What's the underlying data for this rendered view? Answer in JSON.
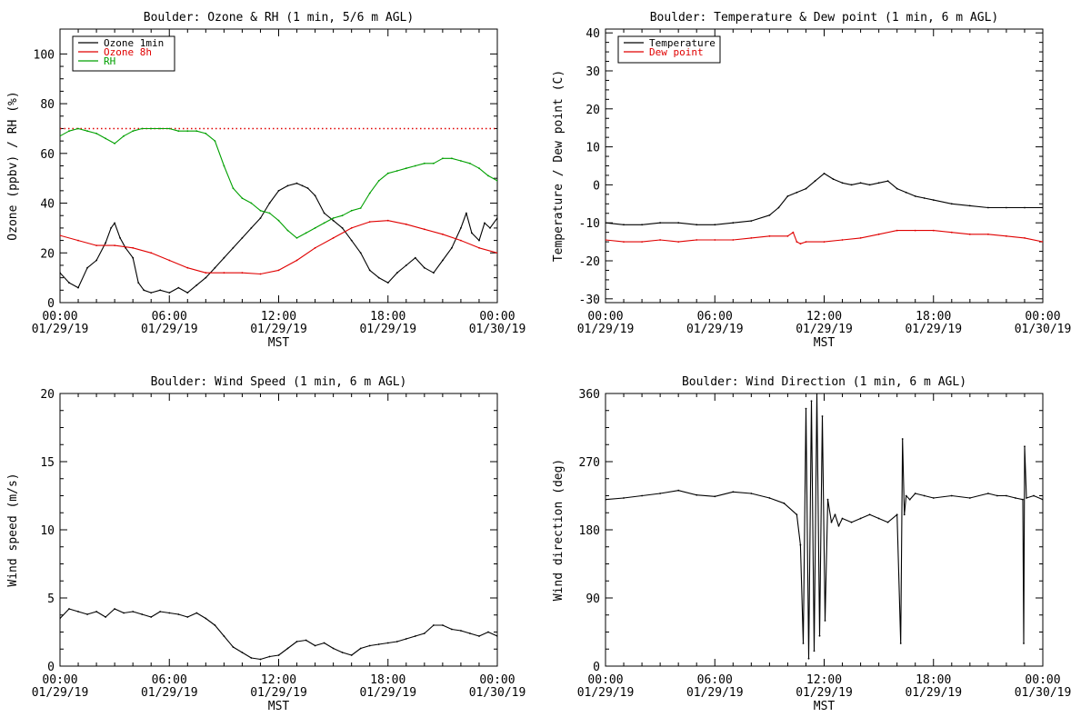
{
  "colors": {
    "black": "#000000",
    "red": "#e00000",
    "green": "#00a000"
  },
  "x_axis": {
    "ticks": [
      {
        "time": "00:00",
        "date": "01/29/19"
      },
      {
        "time": "06:00",
        "date": "01/29/19"
      },
      {
        "time": "12:00",
        "date": "01/29/19"
      },
      {
        "time": "18:00",
        "date": "01/29/19"
      },
      {
        "time": "00:00",
        "date": "01/30/19"
      }
    ],
    "label": "MST",
    "range_hours": [
      0,
      24
    ]
  },
  "chart_data": [
    {
      "type": "line",
      "title": "Boulder: Ozone & RH (1 min, 5/6 m AGL)",
      "ylabel": "Ozone (ppbv) / RH (%)",
      "ylim": [
        0,
        110
      ],
      "yticks": [
        "0",
        "20",
        "40",
        "60",
        "80",
        "100"
      ],
      "yticks_values": [
        0,
        20,
        40,
        60,
        80,
        100
      ],
      "legend_position": "top-left",
      "reference_line": {
        "y": 70,
        "style": "dotted",
        "color": "#e00000"
      },
      "series": [
        {
          "name": "Ozone 1min",
          "color": "#000000",
          "x": [
            0,
            0.5,
            1,
            1.5,
            2,
            2.5,
            2.8,
            3,
            3.3,
            3.6,
            4,
            4.3,
            4.6,
            5,
            5.5,
            6,
            6.5,
            7,
            7.5,
            8,
            8.5,
            9,
            9.5,
            10,
            10.5,
            11,
            11.5,
            12,
            12.5,
            13,
            13.3,
            13.6,
            14,
            14.5,
            15,
            15.5,
            16,
            16.5,
            17,
            17.5,
            18,
            18.5,
            19,
            19.5,
            20,
            20.5,
            21,
            21.5,
            22,
            22.3,
            22.6,
            23,
            23.3,
            23.6,
            24
          ],
          "y": [
            12,
            8,
            6,
            14,
            17,
            24,
            30,
            32,
            26,
            22,
            18,
            8,
            5,
            4,
            5,
            4,
            6,
            4,
            7,
            10,
            14,
            18,
            22,
            26,
            30,
            34,
            40,
            45,
            47,
            48,
            47,
            46,
            43,
            36,
            33,
            30,
            25,
            20,
            13,
            10,
            8,
            12,
            15,
            18,
            14,
            12,
            17,
            22,
            30,
            36,
            28,
            25,
            32,
            30,
            34
          ]
        },
        {
          "name": "Ozone 8h",
          "color": "#e00000",
          "x": [
            0,
            1,
            2,
            3,
            4,
            5,
            6,
            7,
            8,
            9,
            10,
            11,
            12,
            13,
            14,
            15,
            16,
            17,
            18,
            19,
            20,
            21,
            22,
            23,
            24
          ],
          "y": [
            27,
            25,
            23,
            23,
            22,
            20,
            17,
            14,
            12,
            12,
            12,
            11.5,
            13,
            17,
            22,
            26,
            30,
            32.5,
            33,
            31.5,
            29.5,
            27.5,
            25,
            22,
            20
          ]
        },
        {
          "name": "RH",
          "color": "#00a000",
          "x": [
            0,
            0.5,
            1,
            1.5,
            2,
            2.5,
            3,
            3.5,
            4,
            4.5,
            5,
            5.5,
            6,
            6.5,
            7,
            7.5,
            8,
            8.5,
            9,
            9.5,
            10,
            10.5,
            11,
            11.5,
            12,
            12.5,
            13,
            13.5,
            14,
            14.5,
            15,
            15.5,
            16,
            16.5,
            17,
            17.5,
            18,
            18.5,
            19,
            19.5,
            20,
            20.5,
            21,
            21.5,
            22,
            22.5,
            23,
            23.5,
            24
          ],
          "y": [
            67,
            69,
            70,
            69,
            68,
            66,
            64,
            67,
            69,
            70,
            70,
            70,
            70,
            69,
            69,
            69,
            68,
            65,
            55,
            46,
            42,
            40,
            37,
            36,
            33,
            29,
            26,
            28,
            30,
            32,
            34,
            35,
            37,
            38,
            44,
            49,
            52,
            53,
            54,
            55,
            56,
            56,
            58,
            58,
            57,
            56,
            54,
            51,
            49
          ]
        }
      ]
    },
    {
      "type": "line",
      "title": "Boulder: Temperature & Dew point (1 min, 6 m AGL)",
      "ylabel": "Temperature / Dew point (C)",
      "ylim": [
        -31,
        41
      ],
      "yticks": [
        "-30",
        "-20",
        "-10",
        "0",
        "10",
        "20",
        "30",
        "40"
      ],
      "yticks_values": [
        -30,
        -20,
        -10,
        0,
        10,
        20,
        30,
        40
      ],
      "legend_position": "top-left",
      "series": [
        {
          "name": "Temperature",
          "color": "#000000",
          "x": [
            0,
            1,
            2,
            3,
            4,
            5,
            6,
            7,
            8,
            9,
            9.5,
            10,
            10.5,
            11,
            11.5,
            12,
            12.5,
            13,
            13.5,
            14,
            14.5,
            15,
            15.5,
            16,
            16.5,
            17,
            17.5,
            18,
            19,
            20,
            21,
            22,
            23,
            24
          ],
          "y": [
            -10,
            -10.5,
            -10.5,
            -10,
            -10,
            -10.5,
            -10.5,
            -10,
            -9.5,
            -8,
            -6,
            -3,
            -2,
            -1,
            1,
            3,
            1.5,
            0.5,
            0,
            0.5,
            0,
            0.5,
            1,
            -1,
            -2,
            -3,
            -3.5,
            -4,
            -5,
            -5.5,
            -6,
            -6,
            -6,
            -6
          ]
        },
        {
          "name": "Dew point",
          "color": "#e00000",
          "x": [
            0,
            1,
            2,
            3,
            4,
            5,
            6,
            7,
            8,
            9,
            10,
            10.3,
            10.5,
            10.7,
            11,
            12,
            13,
            14,
            15,
            16,
            17,
            18,
            19,
            20,
            21,
            22,
            23,
            24
          ],
          "y": [
            -14.5,
            -15,
            -15,
            -14.5,
            -15,
            -14.5,
            -14.5,
            -14.5,
            -14,
            -13.5,
            -13.5,
            -12.5,
            -15,
            -15.5,
            -15,
            -15,
            -14.5,
            -14,
            -13,
            -12,
            -12,
            -12,
            -12.5,
            -13,
            -13,
            -13.5,
            -14,
            -15
          ]
        }
      ]
    },
    {
      "type": "line",
      "title": "Boulder: Wind Speed (1 min, 6 m AGL)",
      "ylabel": "Wind speed (m/s)",
      "ylim": [
        0,
        20
      ],
      "yticks": [
        "0",
        "5",
        "10",
        "15",
        "20"
      ],
      "yticks_values": [
        0,
        5,
        10,
        15,
        20
      ],
      "series": [
        {
          "color": "#000000",
          "x": [
            0,
            0.5,
            1,
            1.5,
            2,
            2.5,
            3,
            3.5,
            4,
            4.5,
            5,
            5.5,
            6,
            6.5,
            7,
            7.5,
            8,
            8.5,
            9,
            9.5,
            10,
            10.5,
            11,
            11.5,
            12,
            12.5,
            13,
            13.5,
            14,
            14.5,
            15,
            15.5,
            16,
            16.5,
            17,
            17.5,
            18,
            18.5,
            19,
            19.5,
            20,
            20.5,
            21,
            21.5,
            22,
            22.5,
            23,
            23.5,
            24
          ],
          "y": [
            3.5,
            4.2,
            4,
            3.8,
            4,
            3.6,
            4.2,
            3.9,
            4,
            3.8,
            3.6,
            4,
            3.9,
            3.8,
            3.6,
            3.9,
            3.5,
            3,
            2.2,
            1.4,
            1,
            0.6,
            0.5,
            0.7,
            0.8,
            1.3,
            1.8,
            1.9,
            1.5,
            1.7,
            1.3,
            1,
            0.8,
            1.3,
            1.5,
            1.6,
            1.7,
            1.8,
            2,
            2.2,
            2.4,
            3,
            3,
            2.7,
            2.6,
            2.4,
            2.2,
            2.5,
            2.2
          ]
        }
      ]
    },
    {
      "type": "line",
      "title": "Boulder: Wind Direction (1 min, 6 m AGL)",
      "ylabel": "Wind direction (deg)",
      "ylim": [
        0,
        360
      ],
      "yticks": [
        "0",
        "90",
        "180",
        "270",
        "360"
      ],
      "yticks_values": [
        0,
        90,
        180,
        270,
        360
      ],
      "series": [
        {
          "color": "#000000",
          "x": [
            0,
            1,
            2,
            3,
            4,
            5,
            6,
            7,
            8,
            9,
            9.8,
            10.5,
            10.7,
            10.85,
            11,
            11.15,
            11.3,
            11.45,
            11.6,
            11.75,
            11.9,
            12.05,
            12.2,
            12.4,
            12.6,
            12.8,
            13,
            13.5,
            14,
            14.5,
            15,
            15.5,
            16,
            16.2,
            16.3,
            16.4,
            16.5,
            16.7,
            17,
            17.5,
            18,
            19,
            20,
            21,
            21.5,
            22,
            22.5,
            22.9,
            22.95,
            23.0,
            23.1,
            23.5,
            24
          ],
          "y": [
            220,
            222,
            225,
            228,
            232,
            226,
            224,
            230,
            228,
            222,
            215,
            200,
            160,
            30,
            340,
            10,
            350,
            20,
            360,
            40,
            330,
            60,
            220,
            190,
            200,
            185,
            195,
            190,
            195,
            200,
            195,
            190,
            200,
            30,
            300,
            200,
            225,
            220,
            228,
            225,
            222,
            225,
            222,
            228,
            225,
            225,
            222,
            220,
            30,
            290,
            222,
            225,
            220
          ]
        }
      ]
    }
  ]
}
